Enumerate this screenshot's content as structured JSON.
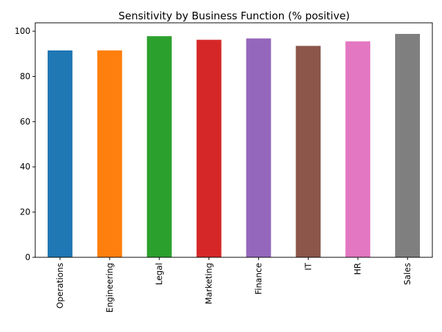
{
  "chart_data": {
    "type": "bar",
    "title": "Sensitivity by Business Function (% positive)",
    "xlabel": "",
    "ylabel": "",
    "categories": [
      "Operations",
      "Engineering",
      "Legal",
      "Marketing",
      "Finance",
      "IT",
      "HR",
      "Sales"
    ],
    "values": [
      91.5,
      91.5,
      97.8,
      96.2,
      96.8,
      93.5,
      95.5,
      98.8
    ],
    "colors": [
      "#1f77b4",
      "#ff7f0e",
      "#2ca02c",
      "#d62728",
      "#9467bd",
      "#8c564b",
      "#e377c2",
      "#7f7f7f"
    ],
    "ylim": [
      0,
      103.7
    ],
    "yticks": [
      0,
      20,
      40,
      60,
      80,
      100
    ],
    "grid": false,
    "legend": "none"
  }
}
